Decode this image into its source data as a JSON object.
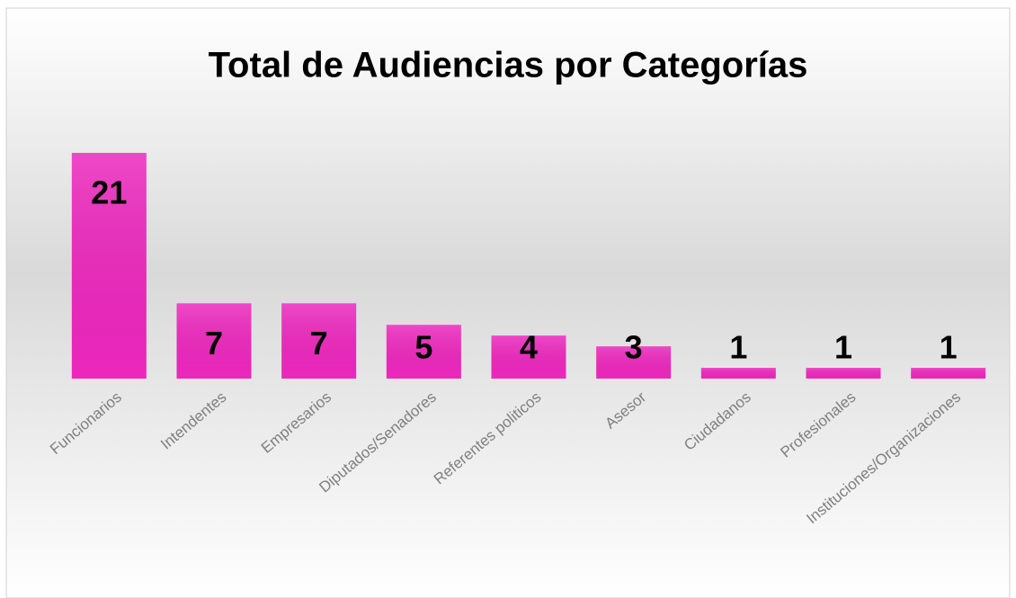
{
  "chart_data": {
    "type": "bar",
    "title": "Total de Audiencias por Categorías",
    "categories": [
      "Funcionarios",
      "Intendentes",
      "Empresarios",
      "Diputados/Senadores",
      "Referentes politicos",
      "Asesor",
      "Ciudadanos",
      "Profesionales",
      "Instituciones/Organizaciones"
    ],
    "values": [
      21,
      7,
      7,
      5,
      4,
      3,
      1,
      1,
      1
    ],
    "color": "#ec28bd"
  }
}
